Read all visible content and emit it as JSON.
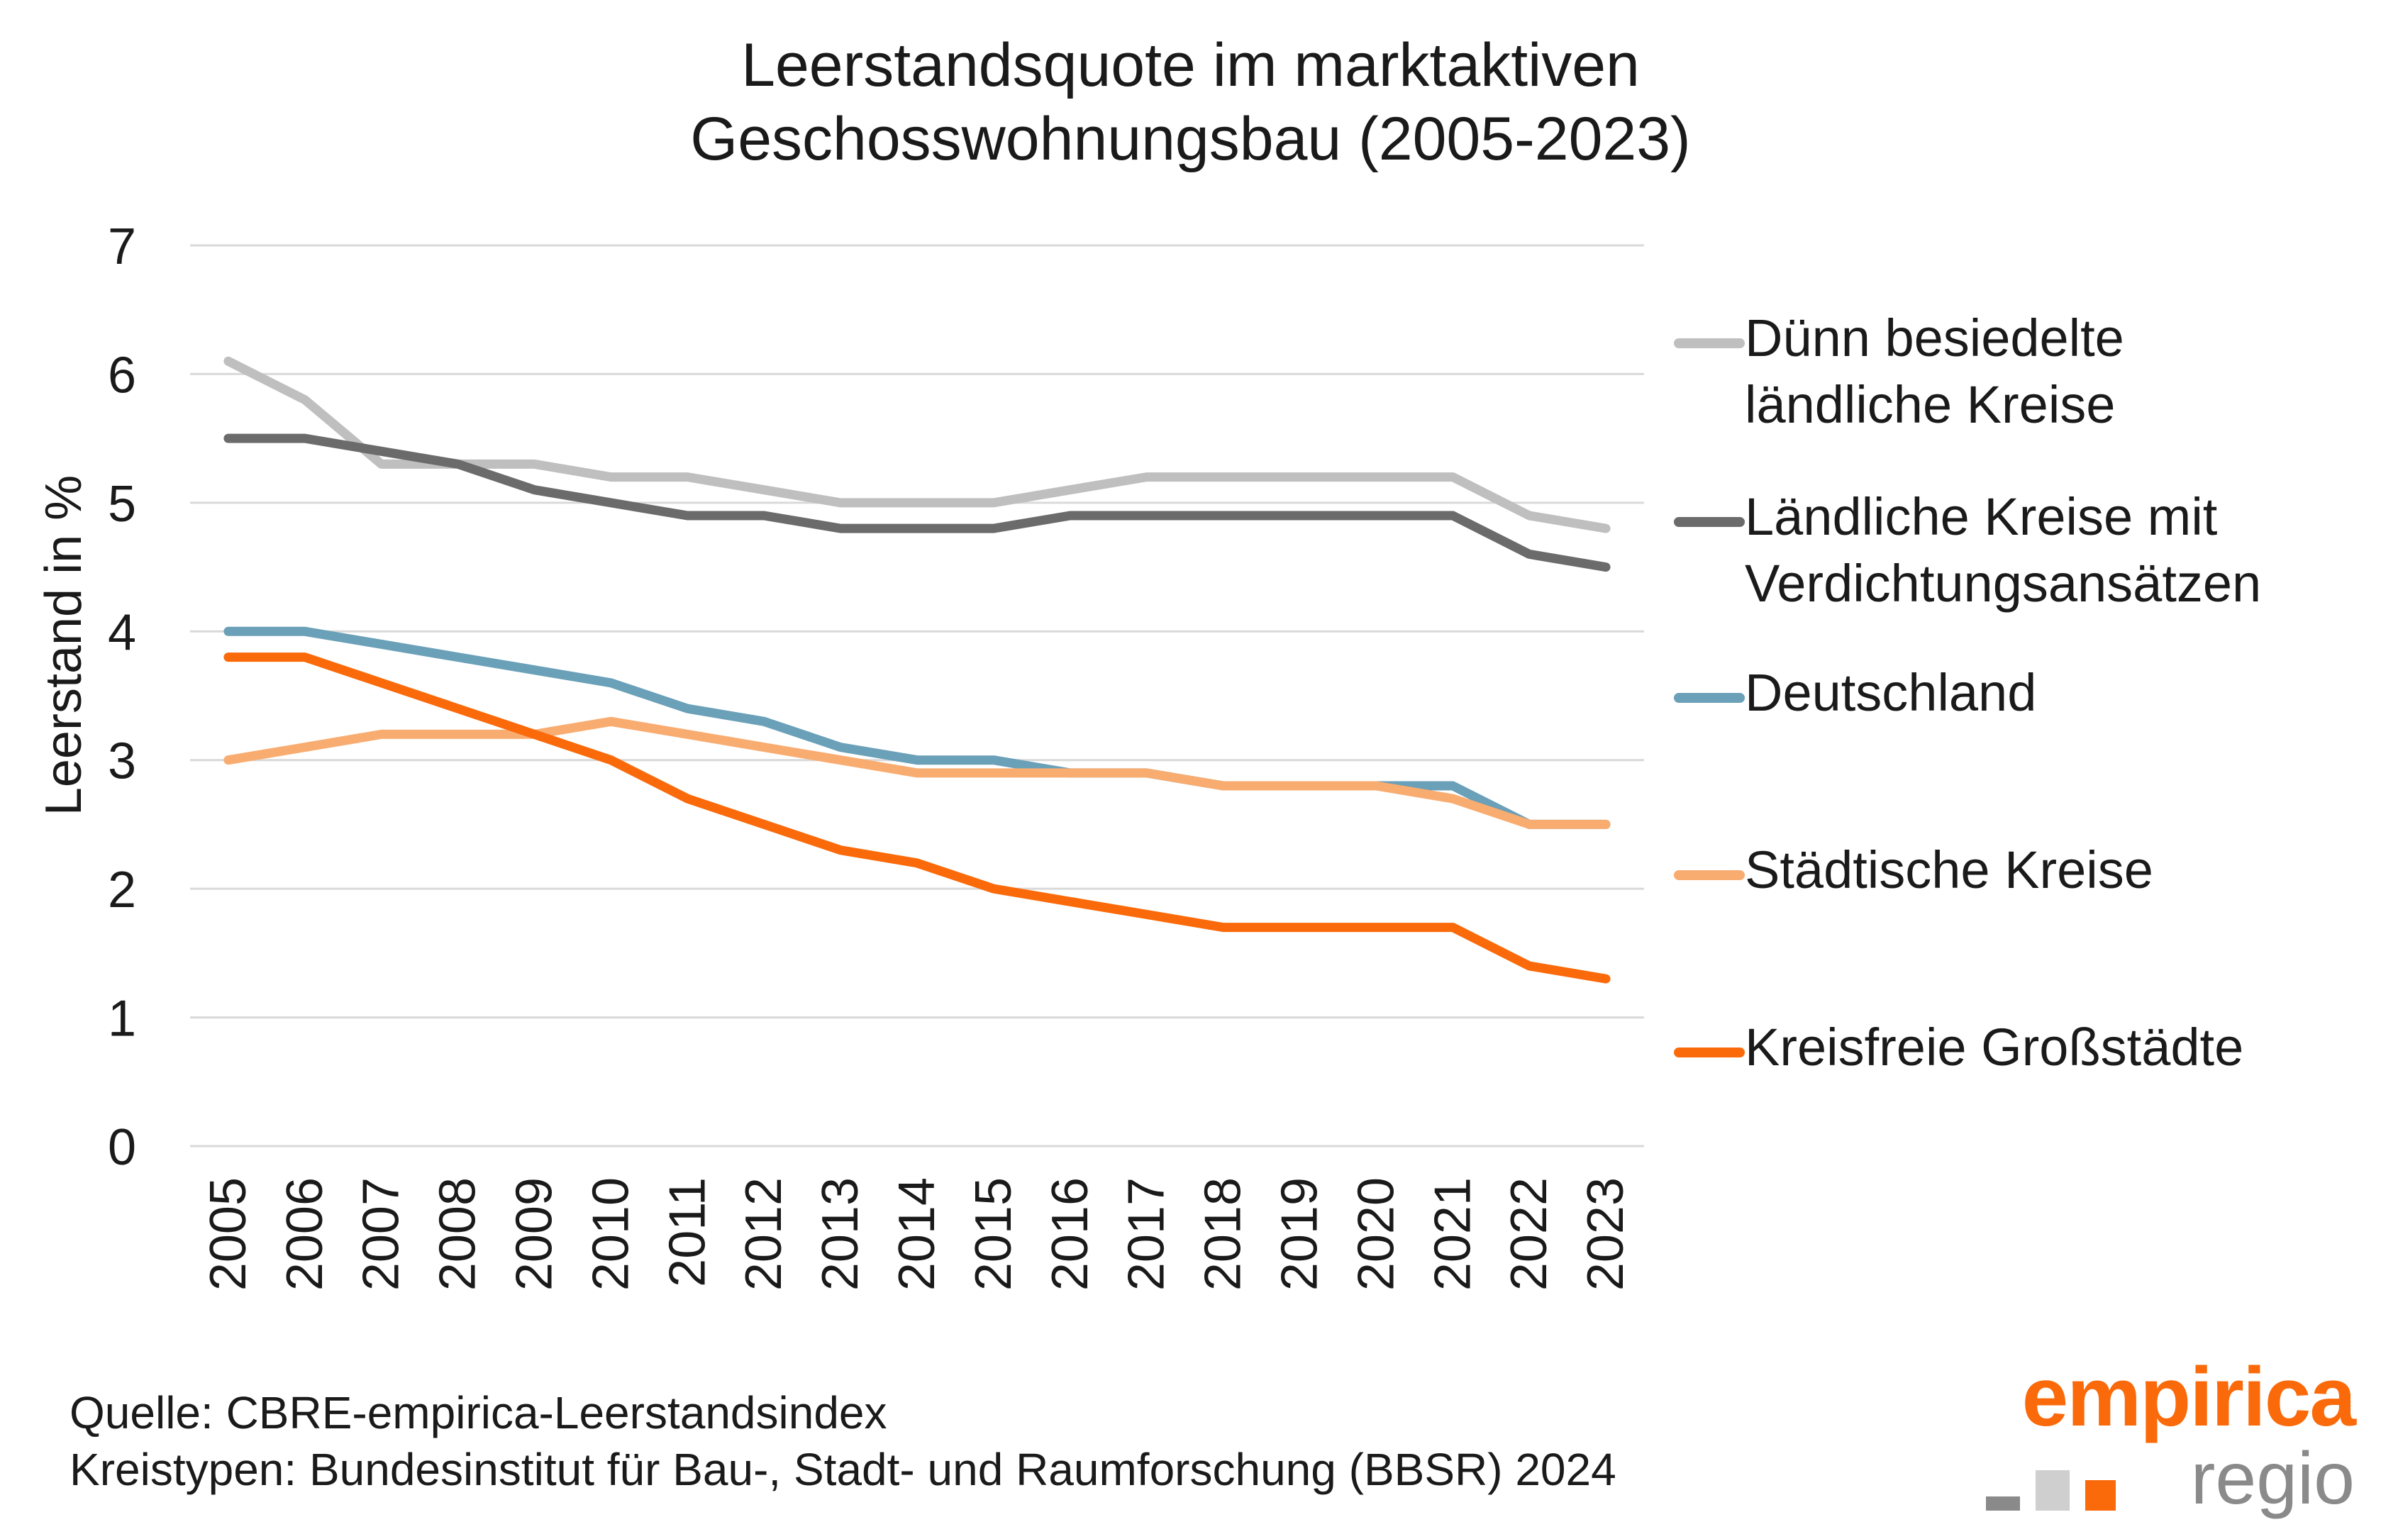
{
  "chart_data": {
    "type": "line",
    "title": "Leerstandsquote im marktaktiven\nGeschosswohnungsbau (2005-2023)",
    "ylabel": "Leerstand in %",
    "xlabel": "",
    "ylim": [
      0,
      7
    ],
    "yticks": [
      "0",
      "1",
      "2",
      "3",
      "4",
      "5",
      "6",
      "7"
    ],
    "grid": true,
    "legend_position": "right",
    "x": [
      "2005",
      "2006",
      "2007",
      "2008",
      "2009",
      "2010",
      "2011",
      "2012",
      "2013",
      "2014",
      "2015",
      "2016",
      "2017",
      "2018",
      "2019",
      "2020",
      "2021",
      "2022",
      "2023"
    ],
    "series": [
      {
        "name": "Dünn besiedelte\nländliche Kreise",
        "color": "#bfbfbf",
        "values": [
          6.1,
          5.8,
          5.3,
          5.3,
          5.3,
          5.2,
          5.2,
          5.1,
          5.0,
          5.0,
          5.0,
          5.1,
          5.2,
          5.2,
          5.2,
          5.2,
          5.2,
          4.9,
          4.8
        ]
      },
      {
        "name": "Ländliche Kreise mit\nVerdichtungsansätzen",
        "color": "#6b6b6b",
        "values": [
          5.5,
          5.5,
          5.4,
          5.3,
          5.1,
          5.0,
          4.9,
          4.9,
          4.8,
          4.8,
          4.8,
          4.9,
          4.9,
          4.9,
          4.9,
          4.9,
          4.9,
          4.6,
          4.5
        ]
      },
      {
        "name": "Deutschland",
        "color": "#6aa0b8",
        "values": [
          4.0,
          4.0,
          3.9,
          3.8,
          3.7,
          3.6,
          3.4,
          3.3,
          3.1,
          3.0,
          3.0,
          2.9,
          2.9,
          2.8,
          2.8,
          2.8,
          2.8,
          2.5,
          2.5
        ]
      },
      {
        "name": "Städtische Kreise",
        "color": "#f9ac70",
        "values": [
          3.0,
          3.1,
          3.2,
          3.2,
          3.2,
          3.3,
          3.2,
          3.1,
          3.0,
          2.9,
          2.9,
          2.9,
          2.9,
          2.8,
          2.8,
          2.8,
          2.7,
          2.5,
          2.5
        ]
      },
      {
        "name": "Kreisfreie Großstädte",
        "color": "#fa6a0a",
        "values": [
          3.8,
          3.8,
          3.6,
          3.4,
          3.2,
          3.0,
          2.7,
          2.5,
          2.3,
          2.2,
          2.0,
          1.9,
          1.8,
          1.7,
          1.7,
          1.7,
          1.7,
          1.4,
          1.3
        ]
      }
    ]
  },
  "footer": {
    "source_line1": "Quelle: CBRE-empirica-Leerstandsindex",
    "source_line2": "Kreistypen: Bundesinstitut für Bau-, Stadt- und Raumforschung (BBSR) 2024"
  },
  "logo": {
    "brand": "empirica",
    "sub": "regio",
    "colors": {
      "brand": "#fa6a0a",
      "sub": "#8a8a8a",
      "sq1": "#8a8a8a",
      "sq2": "#cfcfcf",
      "sq3": "#fa6a0a"
    }
  }
}
